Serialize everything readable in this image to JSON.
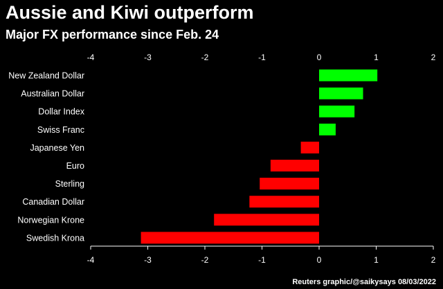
{
  "title": "Aussie and Kiwi outperform",
  "subtitle": "Major FX performance since Feb. 24",
  "source": "Reuters graphic/@saikysays 08/03/2022",
  "chart_data": {
    "type": "bar",
    "orientation": "horizontal",
    "categories": [
      "New Zealand Dollar",
      "Australian Dollar",
      "Dollar Index",
      "Swiss Franc",
      "Japanese Yen",
      "Euro",
      "Sterling",
      "Canadian Dollar",
      "Norwegian Krone",
      "Swedish Krona"
    ],
    "values": [
      1.02,
      0.77,
      0.62,
      0.29,
      -0.32,
      -0.85,
      -1.04,
      -1.22,
      -1.84,
      -3.12
    ],
    "xlim": [
      -4,
      2
    ],
    "xticks": [
      -4,
      -3,
      -2,
      -1,
      0,
      1,
      2
    ],
    "tick_labels_top": true,
    "tick_labels_bottom": true,
    "grid": false,
    "colors": {
      "positive": "#00ff00",
      "negative": "#ff0000",
      "axis": "#ffffff",
      "background": "#000000"
    }
  }
}
